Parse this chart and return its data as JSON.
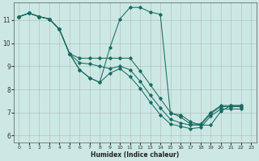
{
  "xlabel": "Humidex (Indice chaleur)",
  "background_color": "#cce8e4",
  "grid_color": "#999999",
  "line_color": "#1a6b62",
  "xlim": [
    -0.5,
    23.5
  ],
  "ylim": [
    5.7,
    11.75
  ],
  "xticks": [
    0,
    1,
    2,
    3,
    4,
    5,
    6,
    7,
    8,
    9,
    10,
    11,
    12,
    13,
    14,
    15,
    16,
    17,
    18,
    19,
    20,
    21,
    22,
    23
  ],
  "yticks": [
    6,
    7,
    8,
    9,
    10,
    11
  ],
  "series": [
    {
      "x": [
        0,
        1,
        2,
        3,
        4,
        5,
        6,
        7,
        8,
        9,
        10,
        11,
        12,
        13,
        14,
        15,
        16,
        17,
        18,
        19,
        20,
        21,
        22
      ],
      "y": [
        11.15,
        11.3,
        11.15,
        11.05,
        10.6,
        9.55,
        8.85,
        8.5,
        8.3,
        9.8,
        11.05,
        11.55,
        11.55,
        11.35,
        11.25,
        6.95,
        6.9,
        6.6,
        6.45,
        6.45,
        7.05,
        7.3,
        7.3
      ]
    },
    {
      "x": [
        0,
        1,
        2,
        3,
        4,
        5,
        6,
        7,
        8,
        9,
        10,
        11,
        12,
        13,
        14,
        15,
        16,
        17,
        18,
        19,
        20,
        21,
        22
      ],
      "y": [
        11.15,
        11.3,
        11.15,
        11.05,
        10.6,
        9.55,
        9.35,
        9.35,
        9.35,
        9.35,
        9.35,
        9.35,
        8.8,
        8.2,
        7.6,
        7.0,
        6.8,
        6.5,
        6.5,
        7.0,
        7.3,
        7.3,
        7.3
      ]
    },
    {
      "x": [
        0,
        1,
        2,
        3,
        4,
        5,
        6,
        7,
        8,
        9,
        10,
        11,
        12,
        13,
        14,
        15,
        16,
        17,
        18,
        19,
        20,
        21,
        22
      ],
      "y": [
        11.15,
        11.3,
        11.15,
        11.05,
        10.6,
        9.55,
        9.15,
        9.1,
        9.0,
        8.9,
        9.0,
        8.85,
        8.35,
        7.75,
        7.2,
        6.7,
        6.55,
        6.45,
        6.45,
        6.95,
        7.25,
        7.25,
        7.25
      ]
    },
    {
      "x": [
        0,
        1,
        2,
        3,
        4,
        5,
        6,
        7,
        8,
        9,
        10,
        11,
        12,
        13,
        14,
        15,
        16,
        17,
        18,
        19,
        20,
        21,
        22
      ],
      "y": [
        11.15,
        11.3,
        11.15,
        11.05,
        10.6,
        9.55,
        8.85,
        8.5,
        8.3,
        8.7,
        8.9,
        8.55,
        8.05,
        7.45,
        6.9,
        6.5,
        6.4,
        6.3,
        6.35,
        6.85,
        7.15,
        7.15,
        7.15
      ]
    }
  ]
}
